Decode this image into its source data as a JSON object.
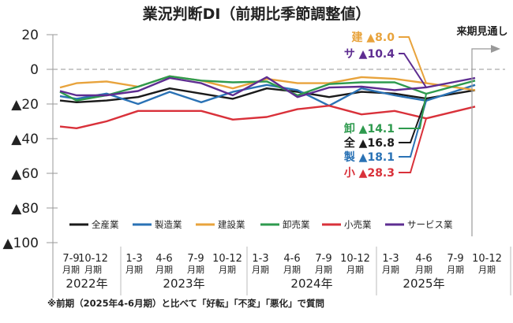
{
  "chart_data": {
    "type": "line",
    "title": "業況判断DI（前期比季節調整値）",
    "xlabel": "",
    "ylabel": "",
    "ylim": [
      -100,
      20
    ],
    "yticks": [
      20,
      0,
      -20,
      -40,
      -60,
      -80,
      -100
    ],
    "ytick_labels": [
      "20",
      "0",
      "▲20",
      "▲40",
      "▲60",
      "▲80",
      "▲100"
    ],
    "grid": false,
    "zero_line": "dashed",
    "categories": [
      {
        "period": "7-9",
        "unit": "月期"
      },
      {
        "period": "10-12",
        "unit": "月期"
      },
      {
        "period": "1-3",
        "unit": "月期"
      },
      {
        "period": "4-6",
        "unit": "月期"
      },
      {
        "period": "7-9",
        "unit": "月期"
      },
      {
        "period": "10-12",
        "unit": "月期"
      },
      {
        "period": "1-3",
        "unit": "月期"
      },
      {
        "period": "4-6",
        "unit": "月期"
      },
      {
        "period": "7-9",
        "unit": "月期"
      },
      {
        "period": "10-12",
        "unit": "月期"
      },
      {
        "period": "1-3",
        "unit": "月期"
      },
      {
        "period": "4-6",
        "unit": "月期"
      },
      {
        "period": "7-9",
        "unit": "月期"
      },
      {
        "period": "10-12",
        "unit": "月期"
      }
    ],
    "years": [
      {
        "label": "2022年",
        "start": 0,
        "count": 2
      },
      {
        "label": "2023年",
        "start": 2,
        "count": 4
      },
      {
        "label": "2024年",
        "start": 6,
        "count": 4
      },
      {
        "label": "2025年",
        "start": 10,
        "count": 4
      }
    ],
    "series": [
      {
        "name": "全産業",
        "short": "全",
        "color": "#1a1a1a",
        "values": [
          -18,
          -19,
          -18,
          -16,
          -11,
          -14,
          -17,
          -11,
          -13,
          -16,
          -13,
          -14,
          -16.8,
          -12
        ],
        "callout": "▲16.8"
      },
      {
        "name": "製造業",
        "short": "製",
        "color": "#2a72b5",
        "values": [
          -15.5,
          -17,
          -14,
          -20,
          -13,
          -19,
          -13,
          -9,
          -12,
          -21,
          -11,
          -15,
          -18.1,
          -9
        ],
        "callout": "▲18.1"
      },
      {
        "name": "建設業",
        "short": "建",
        "color": "#e8a33c",
        "values": [
          -10.5,
          -8,
          -7,
          -10,
          -4,
          -6.5,
          -11,
          -5.5,
          -8,
          -8,
          -4.5,
          -5.5,
          -8.0,
          -12
        ],
        "callout": "▲8.0"
      },
      {
        "name": "卸売業",
        "short": "卸",
        "color": "#2e9a4e",
        "values": [
          -13,
          -18,
          -15,
          -10,
          -4,
          -6.5,
          -7.5,
          -7,
          -15,
          -8.5,
          -7.5,
          -7.5,
          -14.1,
          -6.5
        ],
        "callout": "▲14.1"
      },
      {
        "name": "小売業",
        "short": "小",
        "color": "#d9313a",
        "values": [
          -33,
          -34,
          -30,
          -24,
          -24,
          -24,
          -29,
          -27.5,
          -23,
          -21,
          -26,
          -24,
          -28.3,
          -21.5
        ],
        "callout": "▲28.3"
      },
      {
        "name": "サービス業",
        "short": "サ",
        "color": "#5e2d91",
        "values": [
          -12.5,
          -15,
          -15,
          -12.5,
          -5,
          -8,
          -15,
          -4.5,
          -16,
          -10.5,
          -10,
          -12,
          -10.4,
          -5
        ],
        "callout": "▲10.4"
      }
    ],
    "legend": "bottom-inside",
    "annotations": {
      "forecast_label": "来期見通し",
      "callout_period": "2025年4-6月期"
    },
    "note": "※前期（2025年4-6月期）と比べて「好転」「不変」「悪化」で質問"
  }
}
